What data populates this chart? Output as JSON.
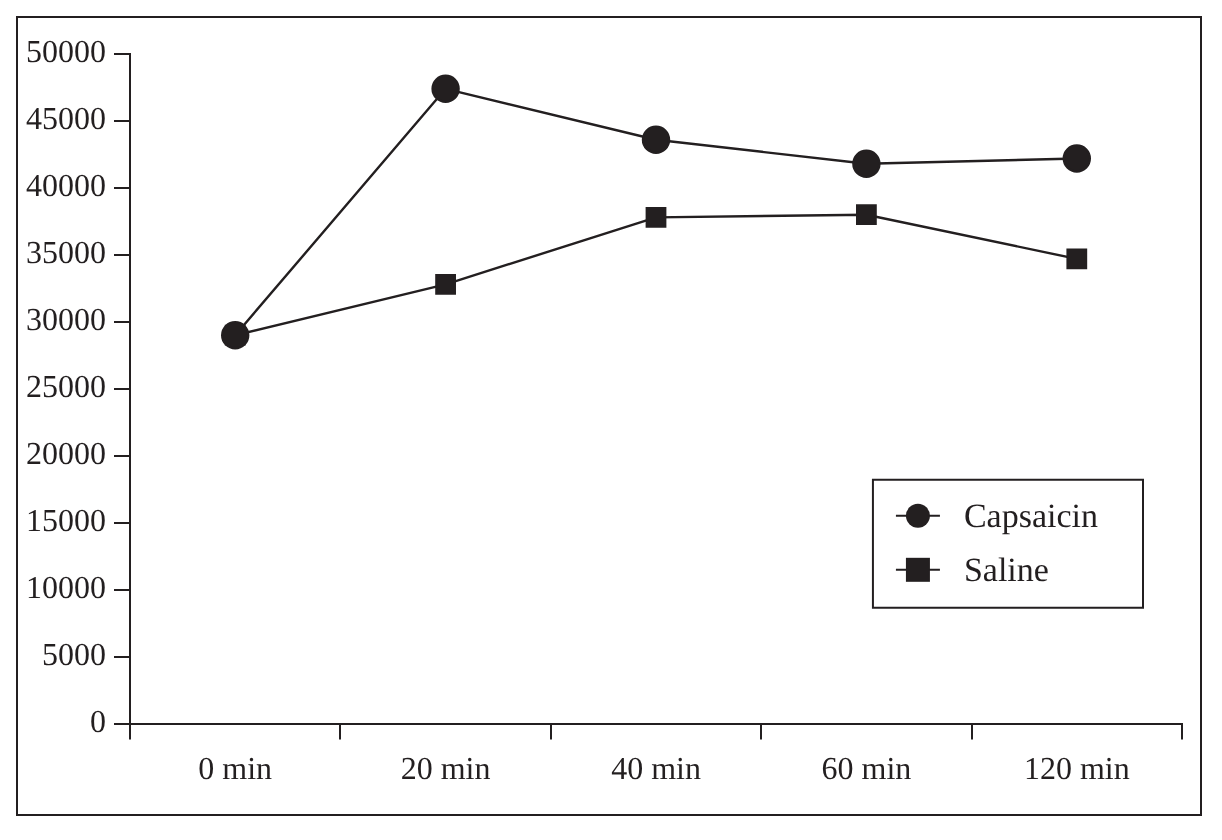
{
  "chart_data": {
    "type": "line",
    "categories": [
      "0 min",
      "20 min",
      "40 min",
      "60 min",
      "120 min"
    ],
    "series": [
      {
        "name": "Capsaicin",
        "color": "#231f20",
        "marker": "circle",
        "values": [
          29000,
          47400,
          43600,
          41800,
          42200
        ]
      },
      {
        "name": "Saline",
        "color": "#231f20",
        "marker": "square",
        "values": [
          29000,
          32800,
          37800,
          38000,
          34700
        ]
      }
    ],
    "ylim": [
      0,
      50000
    ],
    "yticks": [
      0,
      5000,
      10000,
      15000,
      20000,
      25000,
      30000,
      35000,
      40000,
      45000,
      50000
    ],
    "grid": false,
    "legend": "right",
    "line_style": "solid"
  }
}
